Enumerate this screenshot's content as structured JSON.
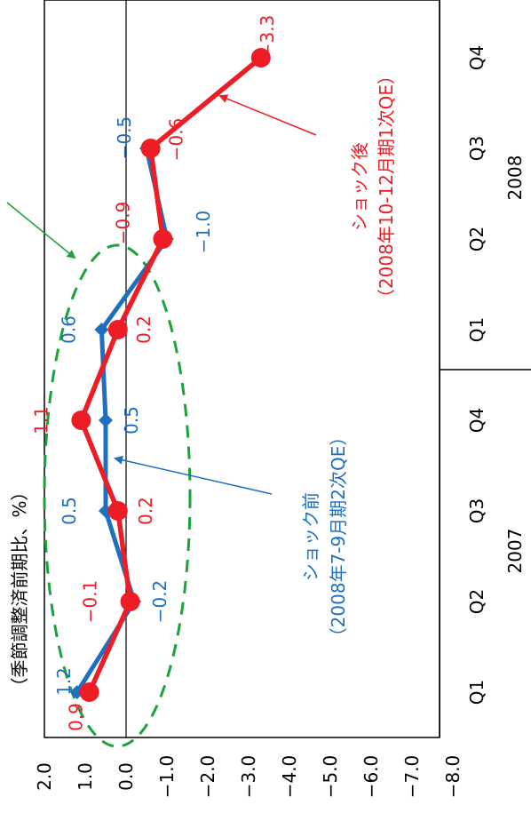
{
  "chart_data": {
    "type": "line",
    "orientation": "rotated-90-clockwise",
    "ylabel": "（季節調整済前期比、%）",
    "ylim": [
      -8.0,
      2.0
    ],
    "y_ticks": [
      "2.0",
      "1.0",
      "0.0",
      "−1.0",
      "−2.0",
      "−3.0",
      "−4.0",
      "−5.0",
      "−6.0",
      "−7.0",
      "−8.0"
    ],
    "y_tick_values": [
      2,
      1,
      0,
      -1,
      -2,
      -3,
      -4,
      -5,
      -6,
      -7,
      -8
    ],
    "categories": [
      "Q1",
      "Q2",
      "Q3",
      "Q4",
      "Q1",
      "Q2",
      "Q3",
      "Q4"
    ],
    "year_groups": [
      {
        "label": "2007",
        "span": [
          0,
          3
        ]
      },
      {
        "label": "2008",
        "span": [
          4,
          7
        ]
      }
    ],
    "series": [
      {
        "name": "ショック前（2008年7-9月期2次QE）",
        "color": "#1f6fc0",
        "values": [
          1.2,
          -0.2,
          0.5,
          0.5,
          0.6,
          -1.0,
          -0.5,
          null
        ],
        "labels": [
          "1.2",
          "−0.2",
          "0.5",
          "0.5",
          "0.6",
          "−1.0",
          "−0.5",
          ""
        ]
      },
      {
        "name": "ショック後（2008年10-12月期1次QE）",
        "color": "#ee1c25",
        "values": [
          0.9,
          -0.1,
          0.2,
          1.1,
          0.2,
          -0.9,
          -0.6,
          -3.3
        ],
        "labels": [
          "0.9",
          "−0.1",
          "0.2",
          "1.1",
          "0.2",
          "−0.9",
          "−0.6",
          "−3.3"
        ]
      }
    ],
    "annotations": {
      "before": {
        "line1": "ショック前",
        "line2": "（2008年7-9月期2次QE）",
        "color": "#1f6fc0"
      },
      "after": {
        "line1": "ショック後",
        "line2": "（2008年10-12月期1次QE）",
        "color": "#ee1c25"
      }
    },
    "highlight_color": "#1aa33a",
    "axis_color": "#000000"
  }
}
